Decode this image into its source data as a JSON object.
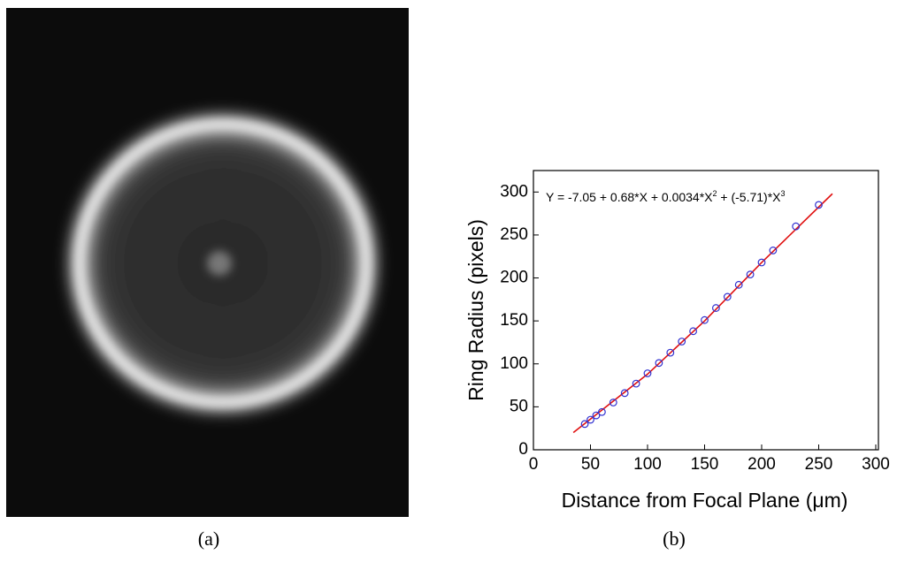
{
  "captions": [
    "(a)",
    "(b)"
  ],
  "chart_data": {
    "type": "scatter",
    "xlabel": "Distance from Focal Plane (μm)",
    "ylabel": "Ring Radius (pixels)",
    "annotation": [
      "Y = -7.05 + 0.68*X + 0.0034*X",
      "2",
      " + (-5.71)*X",
      "3"
    ],
    "xlim": [
      0,
      300
    ],
    "xticks": [
      0,
      50,
      100,
      150,
      200,
      250,
      300
    ],
    "ylim": [
      0,
      325
    ],
    "yticks": [
      0,
      50,
      100,
      150,
      200,
      250,
      300
    ],
    "series": [
      {
        "mode": "line",
        "color": "#e01010",
        "x": [
          35,
          100,
          150,
          200,
          262
        ],
        "values": [
          20,
          88,
          150,
          218,
          298
        ]
      },
      {
        "mode": "markers",
        "color": "#3030d0",
        "x": [
          45,
          50,
          55,
          60,
          70,
          80,
          90,
          100,
          110,
          120,
          130,
          140,
          150,
          160,
          170,
          180,
          190,
          200,
          210,
          230,
          250
        ],
        "values": [
          30,
          35,
          40,
          44,
          55,
          66,
          77,
          89,
          101,
          113,
          126,
          138,
          151,
          165,
          178,
          192,
          204,
          218,
          232,
          260,
          285
        ]
      }
    ]
  }
}
